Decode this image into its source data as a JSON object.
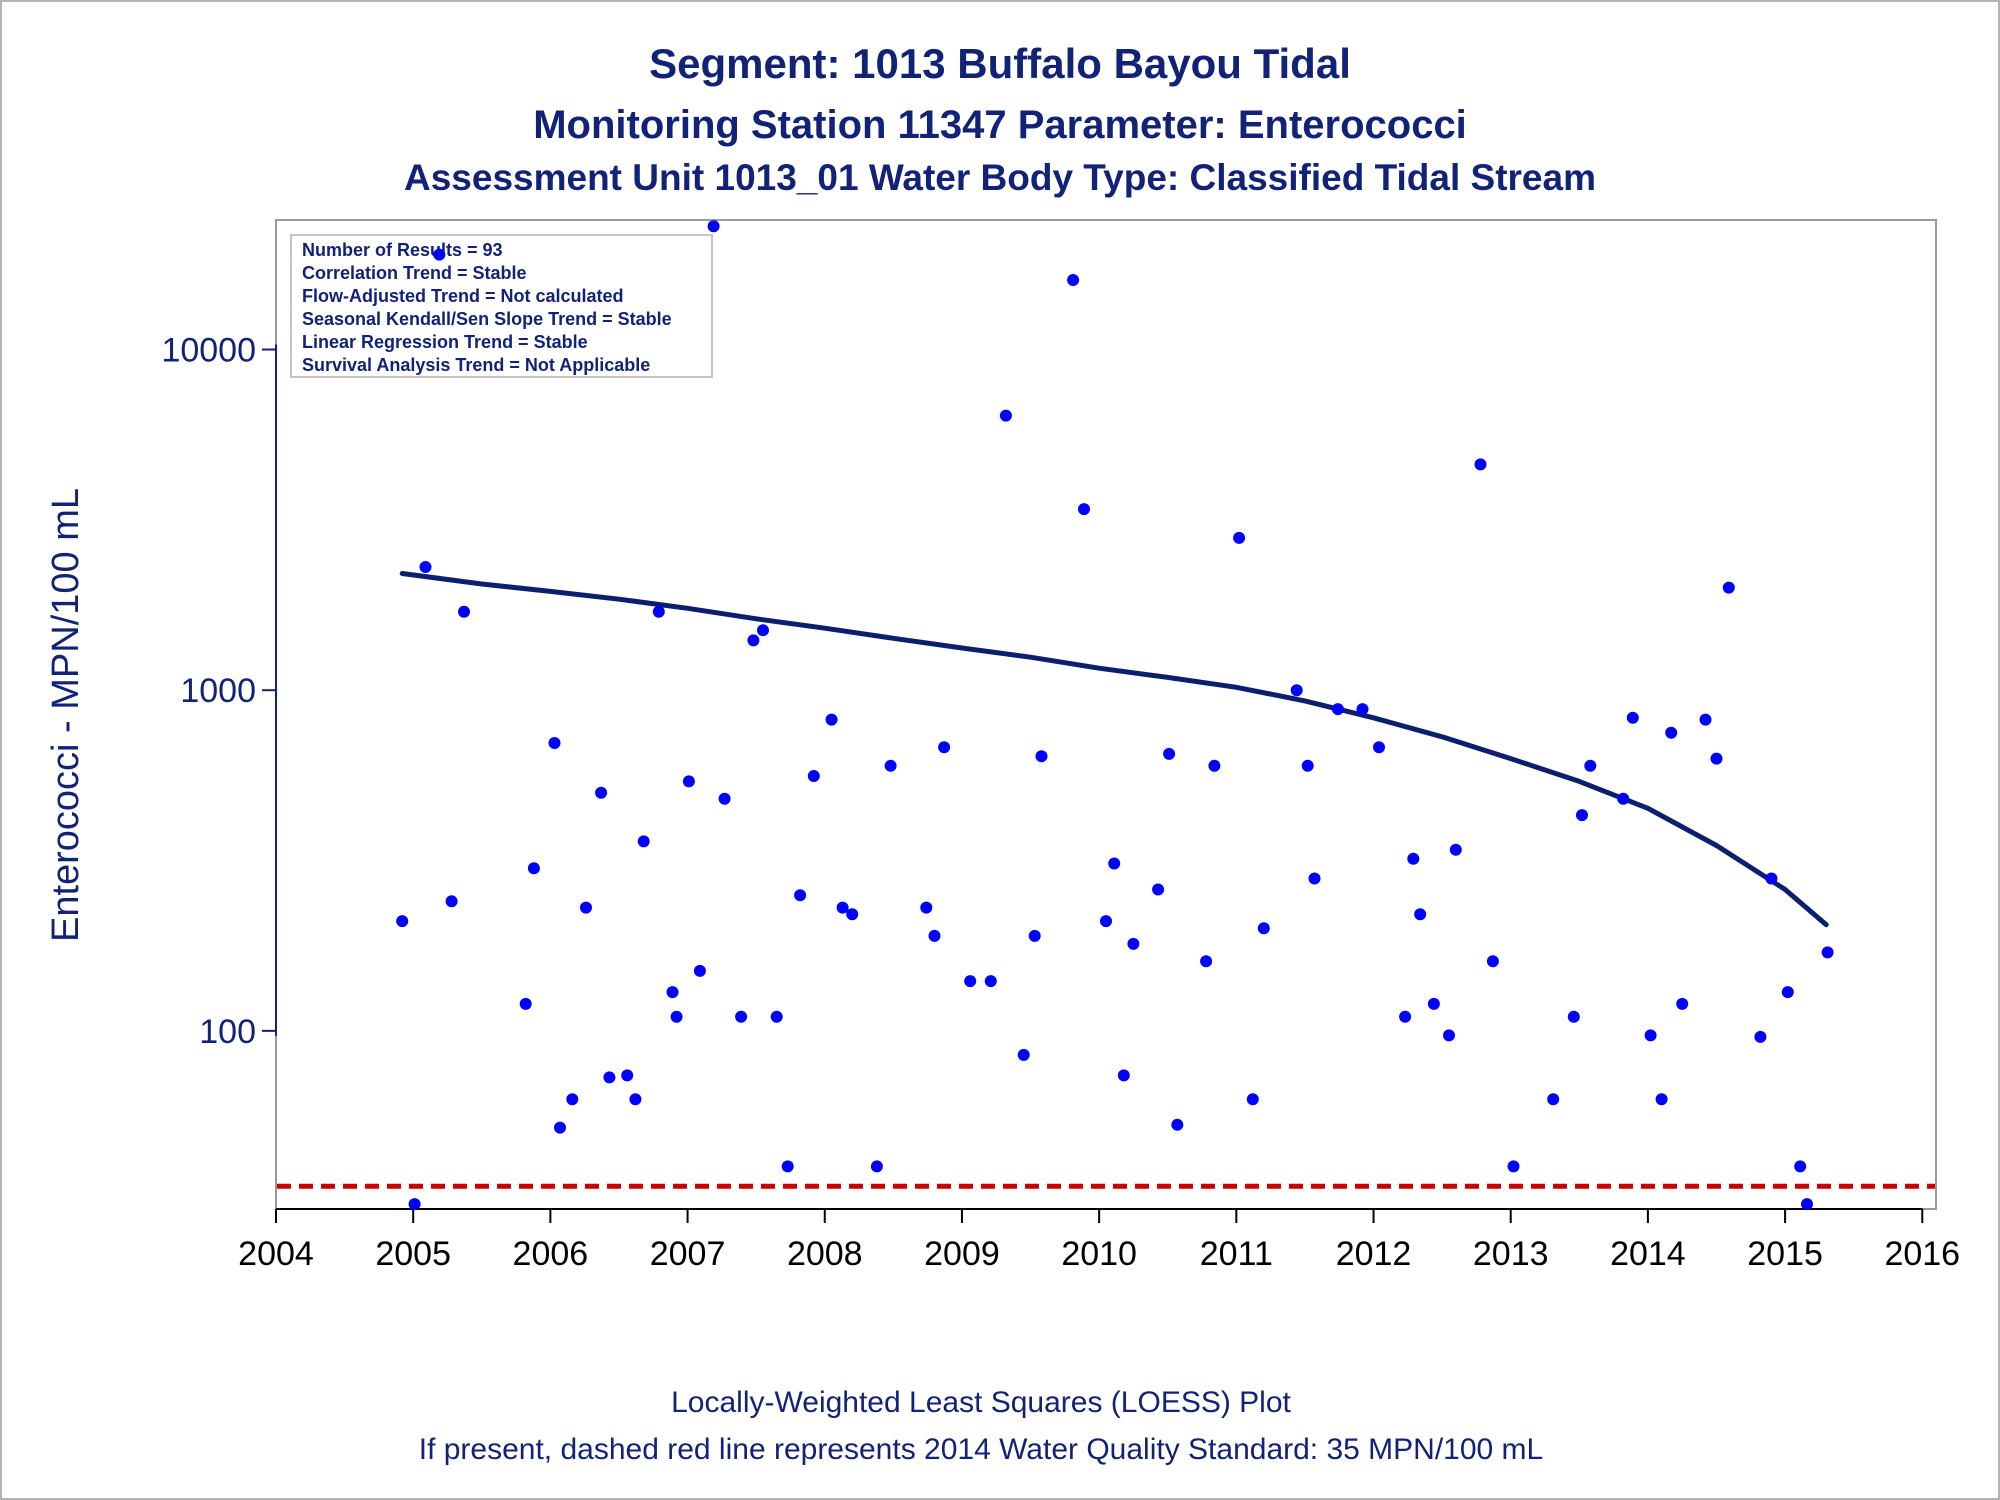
{
  "colors": {
    "text": "#112277",
    "point": "#0000ff",
    "loess": "#0b1f6e",
    "standard": "#cc0000",
    "frame": "#9a9a9a"
  },
  "titles": {
    "line1": "Segment: 1013  Buffalo Bayou Tidal",
    "line2": "Monitoring Station 11347 Parameter: Enterococci",
    "line3": "Assessment Unit 1013_01   Water Body Type: Classified Tidal Stream"
  },
  "footnotes": {
    "line1": "Locally-Weighted Least Squares (LOESS) Plot",
    "line2": "If present, dashed red line represents 2014 Water Quality Standard: 35 MPN/100 mL"
  },
  "stats_box": {
    "lines": [
      "Number of Results = 93",
      "Correlation Trend = Stable",
      "Flow-Adjusted Trend = Not calculated",
      "Seasonal Kendall/Sen Slope Trend = Stable",
      "Linear Regression Trend = Stable",
      "Survival Analysis Trend = Not Applicable"
    ]
  },
  "chart_data": {
    "type": "scatter",
    "ylabel": "Enterococci - MPN/100 mL",
    "xlabel": "",
    "y_scale": "log",
    "xlim": [
      2004,
      2016.1
    ],
    "ylim": [
      30,
      24000
    ],
    "x_ticks": [
      "2004",
      "2005",
      "2006",
      "2007",
      "2008",
      "2009",
      "2010",
      "2011",
      "2012",
      "2013",
      "2014",
      "2015",
      "2016"
    ],
    "y_ticks": [
      "100",
      "1000",
      "10000"
    ],
    "grid": false,
    "standard_line": {
      "value": 35,
      "style": "dashed"
    },
    "series": [
      {
        "kind": "points",
        "points": [
          [
            2004.92,
            210
          ],
          [
            2005.01,
            31
          ],
          [
            2005.09,
            2300
          ],
          [
            2005.19,
            19000
          ],
          [
            2005.28,
            240
          ],
          [
            2005.37,
            1700
          ],
          [
            2005.82,
            120
          ],
          [
            2005.88,
            300
          ],
          [
            2006.03,
            700
          ],
          [
            2006.07,
            52
          ],
          [
            2006.16,
            63
          ],
          [
            2006.26,
            230
          ],
          [
            2006.37,
            500
          ],
          [
            2006.43,
            73
          ],
          [
            2006.56,
            74
          ],
          [
            2006.62,
            63
          ],
          [
            2006.68,
            360
          ],
          [
            2006.79,
            1700
          ],
          [
            2006.89,
            130
          ],
          [
            2006.92,
            110
          ],
          [
            2007.01,
            540
          ],
          [
            2007.09,
            150
          ],
          [
            2007.19,
            23000
          ],
          [
            2007.27,
            480
          ],
          [
            2007.39,
            110
          ],
          [
            2007.48,
            1400
          ],
          [
            2007.55,
            1500
          ],
          [
            2007.65,
            110
          ],
          [
            2007.73,
            40
          ],
          [
            2007.82,
            250
          ],
          [
            2007.92,
            560
          ],
          [
            2008.05,
            820
          ],
          [
            2008.13,
            230
          ],
          [
            2008.2,
            220
          ],
          [
            2008.38,
            40
          ],
          [
            2008.48,
            600
          ],
          [
            2008.74,
            230
          ],
          [
            2008.8,
            190
          ],
          [
            2008.87,
            680
          ],
          [
            2009.06,
            140
          ],
          [
            2009.21,
            140
          ],
          [
            2009.32,
            6400
          ],
          [
            2009.45,
            85
          ],
          [
            2009.53,
            190
          ],
          [
            2009.58,
            640
          ],
          [
            2009.81,
            16000
          ],
          [
            2009.89,
            3400
          ],
          [
            2010.05,
            210
          ],
          [
            2010.11,
            310
          ],
          [
            2010.18,
            74
          ],
          [
            2010.25,
            180
          ],
          [
            2010.43,
            260
          ],
          [
            2010.51,
            650
          ],
          [
            2010.57,
            53
          ],
          [
            2010.78,
            160
          ],
          [
            2010.84,
            600
          ],
          [
            2011.02,
            2800
          ],
          [
            2011.12,
            63
          ],
          [
            2011.2,
            200
          ],
          [
            2011.44,
            1000
          ],
          [
            2011.52,
            600
          ],
          [
            2011.57,
            280
          ],
          [
            2011.74,
            880
          ],
          [
            2011.92,
            880
          ],
          [
            2012.04,
            680
          ],
          [
            2012.23,
            110
          ],
          [
            2012.29,
            320
          ],
          [
            2012.34,
            220
          ],
          [
            2012.44,
            120
          ],
          [
            2012.55,
            97
          ],
          [
            2012.6,
            340
          ],
          [
            2012.78,
            4600
          ],
          [
            2012.87,
            160
          ],
          [
            2013.02,
            40
          ],
          [
            2013.31,
            63
          ],
          [
            2013.46,
            110
          ],
          [
            2013.52,
            430
          ],
          [
            2013.58,
            600
          ],
          [
            2013.82,
            480
          ],
          [
            2013.89,
            830
          ],
          [
            2014.02,
            97
          ],
          [
            2014.1,
            63
          ],
          [
            2014.17,
            750
          ],
          [
            2014.25,
            120
          ],
          [
            2014.42,
            820
          ],
          [
            2014.5,
            630
          ],
          [
            2014.59,
            2000
          ],
          [
            2014.82,
            96
          ],
          [
            2014.9,
            280
          ],
          [
            2015.02,
            130
          ],
          [
            2015.11,
            40
          ],
          [
            2015.16,
            31
          ],
          [
            2015.31,
            170
          ]
        ]
      },
      {
        "kind": "loess",
        "points": [
          [
            2004.92,
            2200
          ],
          [
            2005.5,
            2050
          ],
          [
            2006.0,
            1950
          ],
          [
            2006.5,
            1850
          ],
          [
            2007.0,
            1740
          ],
          [
            2007.5,
            1620
          ],
          [
            2008.0,
            1520
          ],
          [
            2008.5,
            1420
          ],
          [
            2009.0,
            1330
          ],
          [
            2009.5,
            1250
          ],
          [
            2010.0,
            1160
          ],
          [
            2010.5,
            1090
          ],
          [
            2011.0,
            1020
          ],
          [
            2011.5,
            930
          ],
          [
            2012.0,
            830
          ],
          [
            2012.5,
            730
          ],
          [
            2013.0,
            630
          ],
          [
            2013.5,
            540
          ],
          [
            2014.0,
            450
          ],
          [
            2014.5,
            350
          ],
          [
            2015.0,
            260
          ],
          [
            2015.3,
            205
          ]
        ]
      }
    ]
  }
}
